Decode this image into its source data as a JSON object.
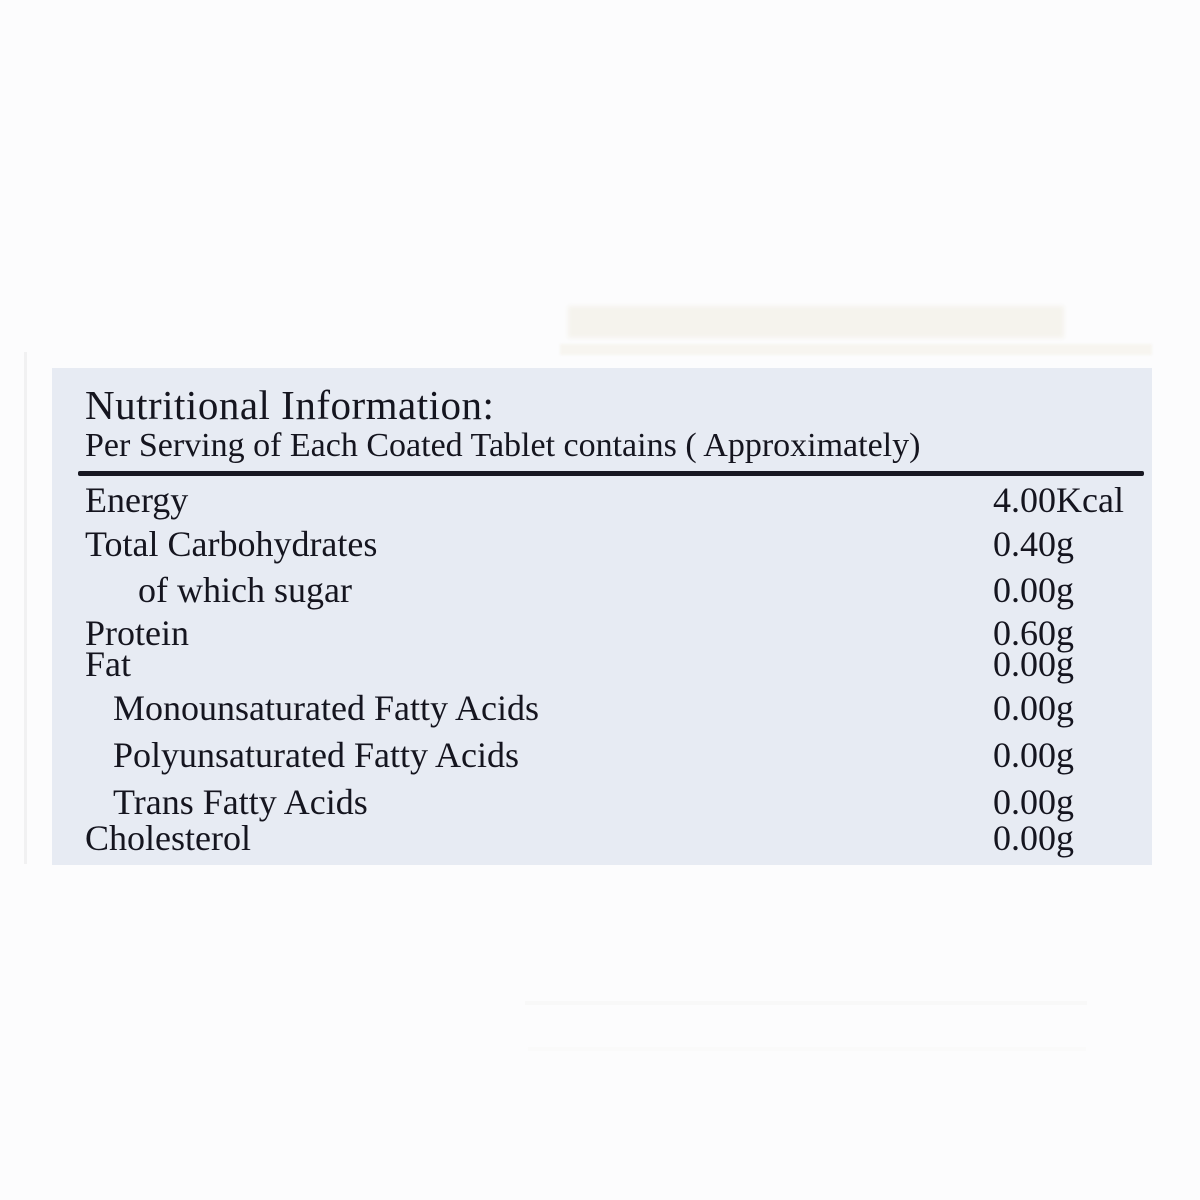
{
  "label": {
    "title": "Nutritional Information:",
    "subtitle": "Per Serving of Each Coated Tablet contains ( Approximately)",
    "rows": [
      {
        "name": "Energy",
        "value": "4.00Kcal",
        "indent": 0
      },
      {
        "name": "Total Carbohydrates",
        "value": "0.40g",
        "indent": 0
      },
      {
        "name": "of which sugar",
        "value": "0.00g",
        "indent": 2
      },
      {
        "name": "Protein",
        "value": "0.60g",
        "indent": 0
      },
      {
        "name": "Fat",
        "value": "0.00g",
        "indent": 0
      },
      {
        "name": "Monounsaturated Fatty Acids",
        "value": "0.00g",
        "indent": 1
      },
      {
        "name": "Polyunsaturated Fatty Acids",
        "value": "0.00g",
        "indent": 1
      },
      {
        "name": "Trans Fatty Acids",
        "value": "0.00g",
        "indent": 1
      },
      {
        "name": "Cholesterol",
        "value": "0.00g",
        "indent": 0
      }
    ],
    "colors": {
      "panel_bg": "#e7ebf3",
      "text": "#15151f",
      "page_bg": "#fcfcfd"
    }
  }
}
